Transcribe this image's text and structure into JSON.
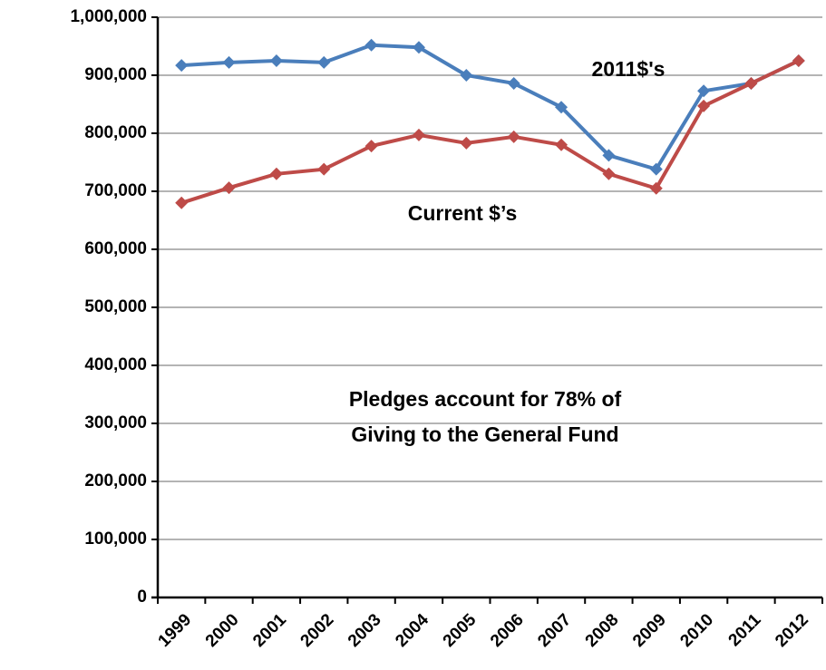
{
  "chart_data": {
    "type": "line",
    "categories": [
      "1999",
      "2000",
      "2001",
      "2002",
      "2003",
      "2004",
      "2005",
      "2006",
      "2007",
      "2008",
      "2009",
      "2010",
      "2011",
      "2012"
    ],
    "series": [
      {
        "name": "2011$'s",
        "color": "#4a7ebb",
        "values": [
          917000,
          922000,
          925000,
          922000,
          952000,
          948000,
          900000,
          886000,
          845000,
          762000,
          738000,
          873000,
          886000,
          925000
        ]
      },
      {
        "name": "Current $’s",
        "color": "#be4b48",
        "values": [
          680000,
          706000,
          730000,
          738000,
          778000,
          797000,
          783000,
          794000,
          780000,
          730000,
          705000,
          847000,
          886000,
          925000
        ]
      }
    ],
    "annotation": [
      "Pledges account for 78% of",
      "Giving to the General Fund"
    ],
    "ylim": [
      0,
      1000000
    ],
    "yticks": [
      0,
      {
        "value": 100000,
        "label": "100,000"
      },
      {
        "value": 200000,
        "label": "200,000"
      },
      {
        "value": 300000,
        "label": "300,000"
      },
      {
        "value": 400000,
        "label": "400,000"
      },
      {
        "value": 500000,
        "label": "500,000"
      },
      {
        "value": 600000,
        "label": "600,000"
      },
      {
        "value": 700000,
        "label": "700,000"
      },
      {
        "value": 800000,
        "label": "800,000"
      },
      {
        "value": 900000,
        "label": "900,000"
      },
      {
        "value": 1000000,
        "label": "1,000,000"
      }
    ],
    "grid": true
  }
}
